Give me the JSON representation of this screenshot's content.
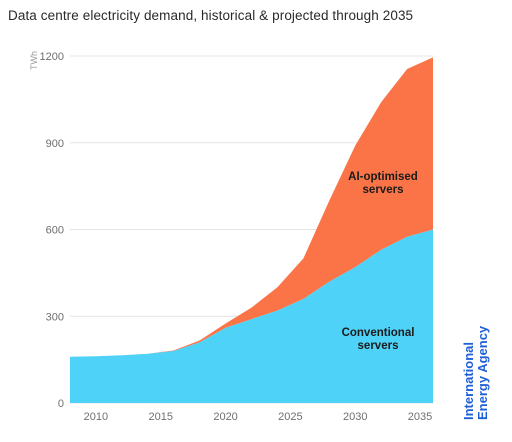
{
  "chart_data": {
    "type": "area",
    "stacked": true,
    "title": "Data centre electricity demand, historical & projected through 2035",
    "ylabel": "TWh",
    "ylim": [
      0,
      1200
    ],
    "xlim": [
      2008,
      2036
    ],
    "yticks": [
      0,
      300,
      600,
      900,
      1200
    ],
    "xticks": [
      2010,
      2015,
      2020,
      2025,
      2030,
      2035
    ],
    "grid": true,
    "x": [
      2008,
      2010,
      2012,
      2014,
      2016,
      2018,
      2020,
      2022,
      2024,
      2026,
      2028,
      2030,
      2032,
      2034,
      2036
    ],
    "series": [
      {
        "name": "Conventional servers",
        "label": [
          "Conventional",
          "servers"
        ],
        "color": "#4fd2f7",
        "values": [
          160,
          162,
          165,
          170,
          180,
          210,
          260,
          290,
          320,
          360,
          420,
          470,
          530,
          575,
          600
        ]
      },
      {
        "name": "AI-optimised servers",
        "label": [
          "AI-optimised",
          "servers"
        ],
        "color": "#fb7447",
        "values": [
          0,
          0,
          0,
          0,
          2,
          6,
          15,
          40,
          80,
          140,
          280,
          420,
          510,
          580,
          595
        ]
      }
    ]
  },
  "source": {
    "logo_line1": "International",
    "logo_line2": "Energy Agency"
  }
}
